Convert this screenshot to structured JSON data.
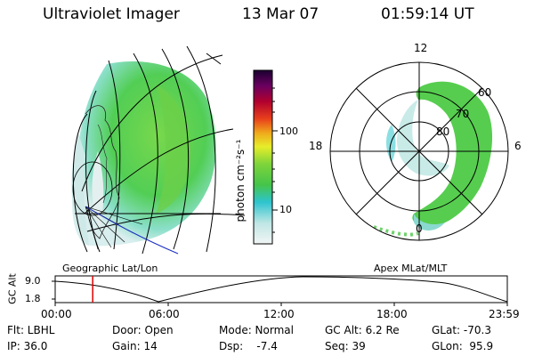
{
  "header": {
    "title": "Ultraviolet Imager",
    "date": "13 Mar 07",
    "time": "01:59:14 UT"
  },
  "panels": {
    "left_label": "Geographic Lat/Lon",
    "right_label": "Apex MLat/MLT"
  },
  "colorbar": {
    "label": "photon cm⁻²s⁻¹",
    "ticks": [
      "100",
      "10"
    ]
  },
  "polar": {
    "mlt_labels": [
      "12",
      "18",
      "6",
      "0"
    ],
    "mlat_labels": [
      "60",
      "70",
      "80"
    ]
  },
  "altitude_plot": {
    "ylabel": "GC Alt",
    "y_ticks": [
      "9.0",
      "1.8"
    ],
    "x_ticks": [
      "00:00",
      "06:00",
      "12:00",
      "18:00",
      "23:59"
    ],
    "marker_time": "01:59:14",
    "marker_fraction": 0.083
  },
  "info": {
    "flt": "Flt: LBHL",
    "ip": "IP: 36.0",
    "door": "Door: Open",
    "gain": "Gain: 14",
    "mode": "Mode: Normal",
    "dsp": "Dsp:    -7.4",
    "gcalt": "GC Alt: 6.2 Re",
    "seq": "Seq: 39",
    "glat": "GLat: -70.3",
    "glon": "GLon:  95.9"
  },
  "colors": {
    "aurora_green": "#4fd14a",
    "aurora_cyan": "#bfe9e6",
    "marker_red": "#dd0000"
  }
}
